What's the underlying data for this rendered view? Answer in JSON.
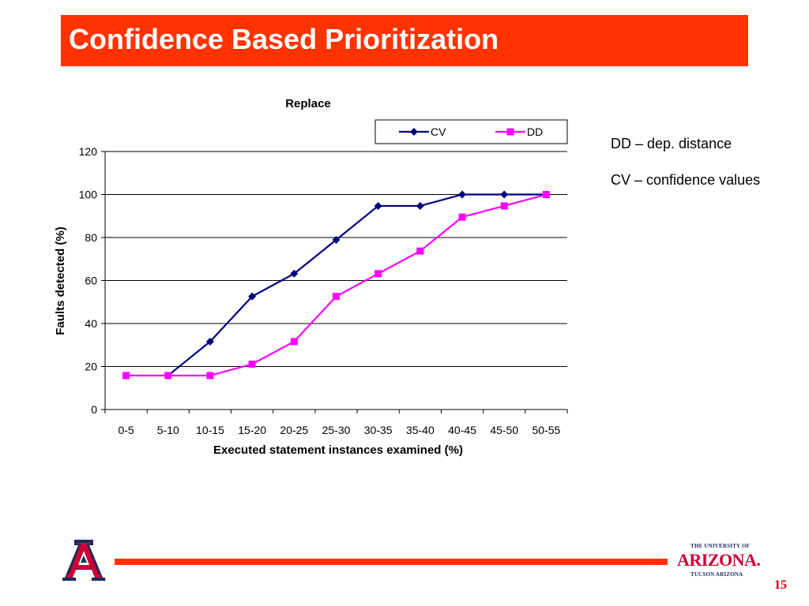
{
  "slide": {
    "title": "Confidence Based Prioritization",
    "page_number": "15",
    "notes": [
      "DD – dep. distance",
      "CV – confidence values"
    ]
  },
  "logos": {
    "left_logo": "A",
    "right_logo_top": "THE UNIVERSITY OF",
    "right_logo_main": "ARIZONA.",
    "right_logo_bottom": "TUCSON ARIZONA"
  },
  "colors": {
    "title_bar": "#ff3300",
    "cv_series": "#000080",
    "dd_series": "#ff00ff",
    "logo_blue": "#1b2a5c",
    "logo_red": "#cc0033"
  },
  "chart_data": {
    "type": "line",
    "title": "Replace",
    "xlabel": "Executed statement instances examined (%)",
    "ylabel": "Faults detected (%)",
    "categories": [
      "0-5",
      "5-10",
      "10-15",
      "15-20",
      "20-25",
      "25-30",
      "30-35",
      "35-40",
      "40-45",
      "45-50",
      "50-55"
    ],
    "yticks": [
      0,
      20,
      40,
      60,
      80,
      100,
      120
    ],
    "ylim": [
      0,
      120
    ],
    "grid": true,
    "legend_position": "top-right",
    "series": [
      {
        "name": "CV",
        "marker": "diamond",
        "color": "#000080",
        "values": [
          15.8,
          15.8,
          31.6,
          52.6,
          63.2,
          78.9,
          94.7,
          94.7,
          100,
          100,
          100
        ]
      },
      {
        "name": "DD",
        "marker": "square",
        "color": "#ff00ff",
        "values": [
          15.8,
          15.8,
          15.8,
          21.1,
          31.6,
          52.6,
          63.2,
          73.7,
          89.5,
          94.7,
          100
        ]
      }
    ]
  }
}
